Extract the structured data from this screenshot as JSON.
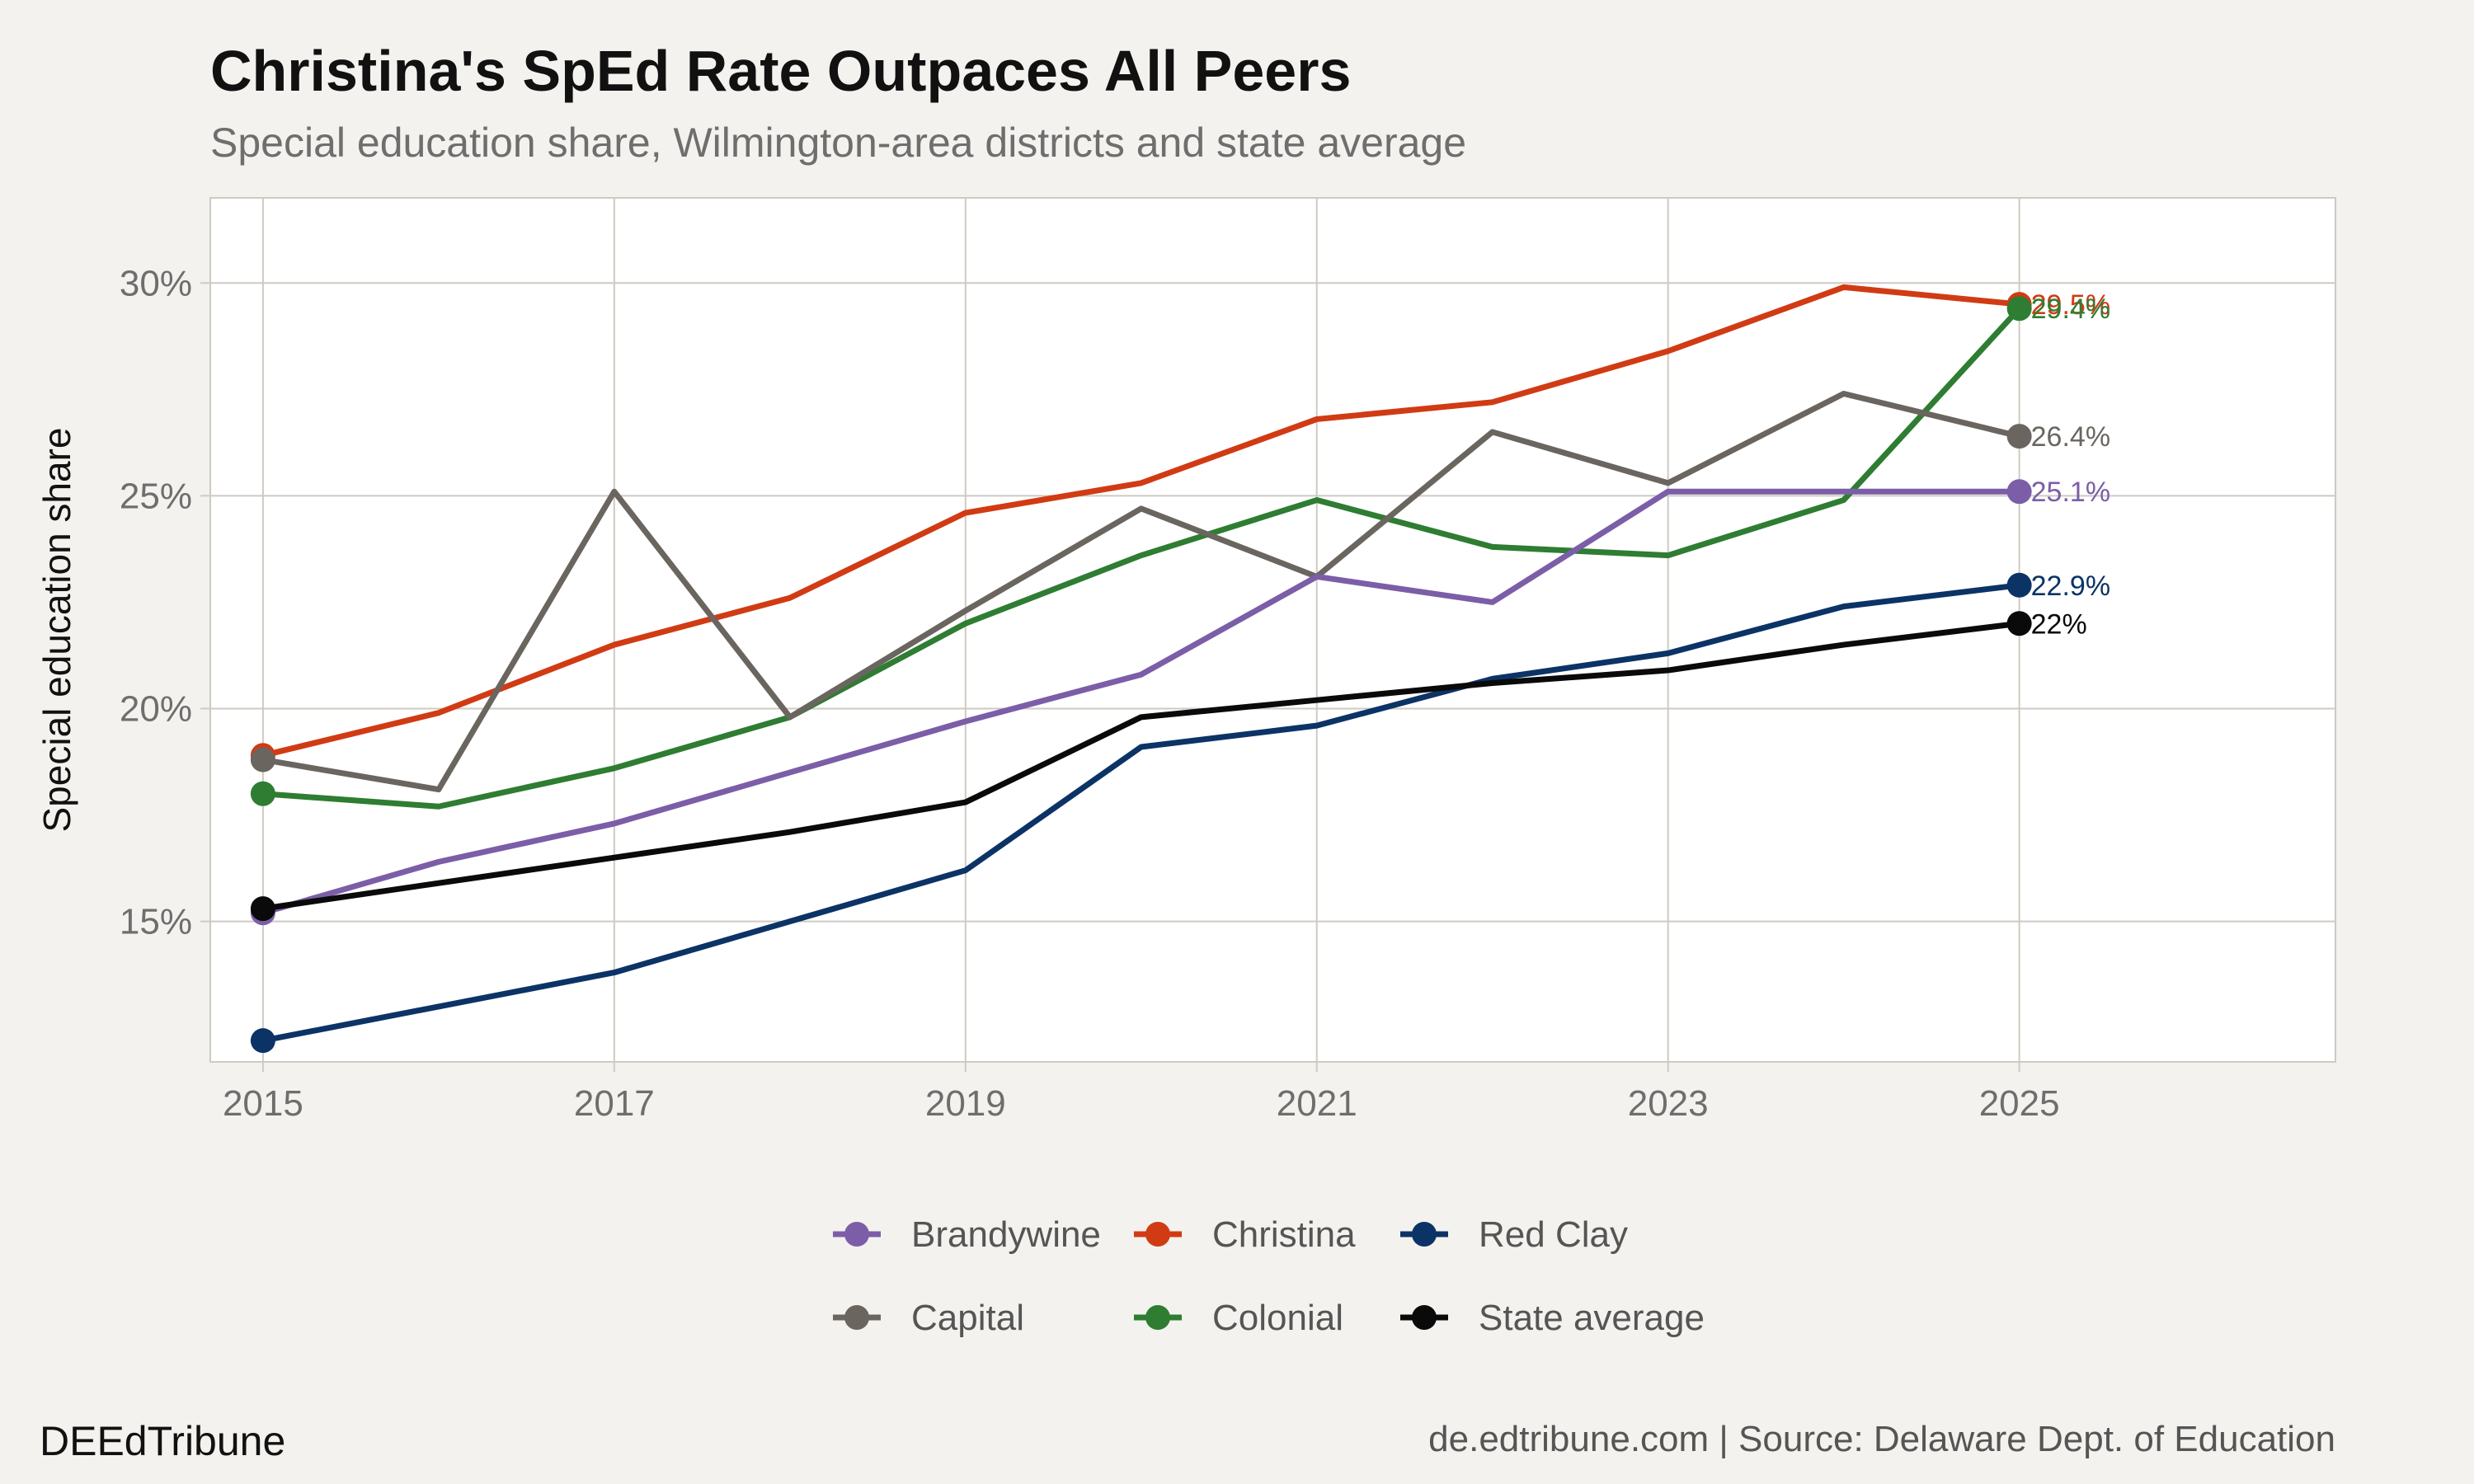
{
  "header": {
    "title": "Christina's SpEd Rate Outpaces All Peers",
    "subtitle": "Special education share, Wilmington-area districts and state average"
  },
  "footer": {
    "brand": "DEEdTribune",
    "source": "de.edtribune.com | Source: Delaware Dept. of Education"
  },
  "chart_data": {
    "type": "line",
    "title": "Christina's SpEd Rate Outpaces All Peers",
    "subtitle": "Special education share, Wilmington-area districts and state average",
    "xlabel": "",
    "ylabel": "Special education share",
    "x": [
      2015,
      2016,
      2017,
      2018,
      2019,
      2020,
      2021,
      2022,
      2023,
      2024,
      2025
    ],
    "xlim": [
      2014.7,
      2026.8
    ],
    "ylim": [
      11.7,
      32.0
    ],
    "x_ticks": [
      2015,
      2017,
      2019,
      2021,
      2023,
      2025
    ],
    "x_tick_labels": [
      "2015",
      "2017",
      "2019",
      "2021",
      "2023",
      "2025"
    ],
    "y_ticks": [
      15,
      20,
      25,
      30
    ],
    "y_tick_labels": [
      "15%",
      "20%",
      "25%",
      "30%"
    ],
    "grid": true,
    "legend_position": "bottom",
    "series": [
      {
        "name": "Christina",
        "color": "#d13b14",
        "values": [
          18.9,
          19.9,
          21.5,
          22.6,
          24.6,
          25.3,
          26.8,
          27.2,
          28.4,
          29.9,
          29.5
        ],
        "end_label": "29.5%"
      },
      {
        "name": "Colonial",
        "color": "#2e7d32",
        "values": [
          18.0,
          17.7,
          18.6,
          19.8,
          22.0,
          23.6,
          24.9,
          23.8,
          23.6,
          24.9,
          29.4
        ],
        "end_label": "29.4%"
      },
      {
        "name": "Capital",
        "color": "#6b6560",
        "values": [
          18.8,
          18.1,
          25.1,
          19.8,
          22.3,
          24.7,
          23.1,
          26.5,
          25.3,
          27.4,
          26.4
        ],
        "end_label": "26.4%"
      },
      {
        "name": "Brandywine",
        "color": "#7b5ea7",
        "values": [
          15.2,
          16.4,
          17.3,
          18.5,
          19.7,
          20.8,
          23.1,
          22.5,
          25.1,
          25.1,
          25.1
        ],
        "end_label": "25.1%"
      },
      {
        "name": "Red Clay",
        "color": "#0c3366",
        "values": [
          12.2,
          13.0,
          13.8,
          15.0,
          16.2,
          19.1,
          19.6,
          20.7,
          21.3,
          22.4,
          22.9
        ],
        "end_label": "22.9%"
      },
      {
        "name": "State average",
        "color": "#0a0a0a",
        "values": [
          15.3,
          15.9,
          16.5,
          17.1,
          17.8,
          19.8,
          20.2,
          20.6,
          20.9,
          21.5,
          22.0
        ],
        "end_label": "22%"
      }
    ],
    "legend_order": [
      "Brandywine",
      "Christina",
      "Red Clay",
      "Capital",
      "Colonial",
      "State average"
    ]
  }
}
